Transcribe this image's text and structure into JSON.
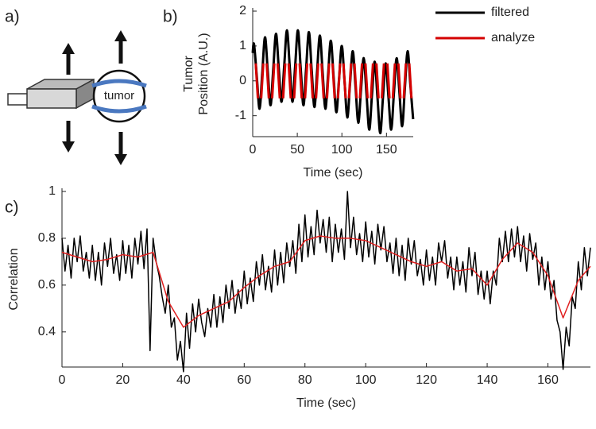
{
  "diagram": {
    "panel_label": "a)",
    "label": "tumor"
  },
  "chart_data": [
    {
      "type": "line",
      "panel_label": "b)",
      "xlabel": "Time (sec)",
      "ylabel": [
        "Tumor",
        "Position (A.U.)"
      ],
      "xlim": [
        0,
        180
      ],
      "ylim": [
        -1.6,
        2
      ],
      "xticks": [
        0,
        50,
        100,
        150
      ],
      "yticks": [
        -1,
        0,
        1,
        2
      ],
      "smooth": true,
      "legend": "upper right",
      "series": [
        {
          "name": "filtered",
          "color": "#000000",
          "x": [
            0,
            1.5,
            4.6,
            7.7,
            10.7,
            13.8,
            16.9,
            20.0,
            23.0,
            26.1,
            29.2,
            32.3,
            35.3,
            38.4,
            41.5,
            44.6,
            47.6,
            50.7,
            53.8,
            56.9,
            59.9,
            63.0,
            66.1,
            69.2,
            72.2,
            75.3,
            78.4,
            81.5,
            84.5,
            87.6,
            90.7,
            93.8,
            96.8,
            99.9,
            103.0,
            106.1,
            109.1,
            112.2,
            115.3,
            118.4,
            121.4,
            124.5,
            127.6,
            130.7,
            133.7,
            136.8,
            139.9,
            143.0,
            146.0,
            149.1,
            152.2,
            155.3,
            158.3,
            161.4,
            164.5,
            167.6,
            170.6,
            173.7,
            176.8,
            179.9
          ],
          "values": [
            0.8,
            1.05,
            0.12,
            -0.8,
            0.22,
            1.25,
            0.27,
            -0.7,
            0.32,
            1.35,
            0.37,
            -0.6,
            0.42,
            1.45,
            0.42,
            -0.6,
            0.42,
            1.45,
            0.37,
            -0.7,
            0.35,
            1.4,
            0.32,
            -0.75,
            0.27,
            1.3,
            0.25,
            -0.8,
            0.17,
            1.15,
            0.12,
            -0.9,
            0.05,
            1.0,
            -0.02,
            -1.05,
            -0.1,
            0.85,
            -0.17,
            -1.2,
            -0.27,
            0.65,
            -0.37,
            -1.4,
            -0.42,
            0.55,
            -0.47,
            -1.5,
            -0.5,
            0.5,
            -0.45,
            -1.4,
            -0.37,
            0.65,
            -0.32,
            -1.3,
            -0.22,
            0.85,
            -0.12,
            -1.1
          ]
        },
        {
          "name": "analyze",
          "color": "#d40000",
          "x": [
            3.4,
            5.8,
            7.7,
            9.5,
            11.9,
            13.8,
            15.7,
            18.1,
            20.0,
            21.8,
            24.2,
            26.1,
            28.0,
            30.4,
            32.3,
            34.1,
            36.5,
            38.4,
            40.3,
            42.7,
            44.6,
            46.4,
            48.8,
            50.7,
            52.6,
            55.0,
            56.9,
            58.7,
            61.1,
            63.0,
            64.9,
            67.3,
            69.2,
            71.0,
            73.4,
            75.3,
            77.2,
            79.6,
            81.5,
            83.3,
            85.7,
            87.6,
            89.5,
            91.9,
            93.8,
            95.6,
            98.0,
            99.9,
            101.8,
            104.2,
            106.1,
            107.9,
            110.3,
            112.2,
            114.1,
            116.5,
            118.4,
            120.2,
            122.6,
            124.5,
            126.4,
            128.8,
            130.7,
            132.5,
            134.9,
            136.8,
            138.7,
            141.1,
            143.0,
            144.8,
            147.2,
            149.1,
            151.0,
            153.4,
            155.3,
            157.1,
            159.5,
            161.4,
            163.3,
            165.7,
            167.6,
            169.4,
            171.8,
            173.7,
            175.6,
            178.0
          ],
          "values": [
            0.5,
            -0.5,
            null,
            -0.5,
            0.5,
            null,
            0.5,
            -0.5,
            null,
            -0.5,
            0.5,
            null,
            0.5,
            -0.5,
            null,
            -0.5,
            0.5,
            null,
            0.5,
            -0.5,
            null,
            -0.5,
            0.5,
            null,
            0.5,
            -0.5,
            null,
            -0.5,
            0.5,
            null,
            0.5,
            -0.5,
            null,
            -0.5,
            0.5,
            null,
            0.5,
            -0.5,
            null,
            -0.5,
            0.5,
            null,
            0.5,
            -0.5,
            null,
            -0.5,
            0.5,
            null,
            0.5,
            -0.5,
            null,
            -0.5,
            0.5,
            null,
            0.5,
            -0.5,
            null,
            -0.5,
            0.5,
            null,
            0.5,
            -0.5,
            null,
            -0.5,
            0.5,
            null,
            0.5,
            -0.5,
            null,
            -0.5,
            0.5,
            null,
            0.5,
            -0.5,
            null,
            -0.5,
            0.5,
            null,
            0.5,
            -0.5,
            null,
            -0.5,
            0.5,
            null,
            0.5,
            -0.5
          ]
        }
      ]
    },
    {
      "type": "line",
      "panel_label": "c)",
      "xlabel": "Time (sec)",
      "ylabel": [
        "Correlation"
      ],
      "xlim": [
        0,
        174
      ],
      "ylim": [
        0.25,
        1
      ],
      "xticks": [
        0,
        20,
        40,
        60,
        80,
        100,
        120,
        140,
        160
      ],
      "yticks": [
        0.4,
        0.6,
        0.8,
        1
      ],
      "smooth": false,
      "series": [
        {
          "color": "#000000",
          "x": [
            0,
            1,
            2,
            3,
            4,
            5,
            6,
            7,
            8,
            9,
            10,
            11,
            12,
            13,
            14,
            15,
            16,
            17,
            18,
            19,
            20,
            21,
            22,
            23,
            24,
            25,
            26,
            27,
            28,
            29,
            30,
            31,
            32,
            33,
            34,
            35,
            36,
            37,
            38,
            39,
            40,
            41,
            42,
            43,
            44,
            45,
            46,
            47,
            48,
            49,
            50,
            51,
            52,
            53,
            54,
            55,
            56,
            57,
            58,
            59,
            60,
            61,
            62,
            63,
            64,
            65,
            66,
            67,
            68,
            69,
            70,
            71,
            72,
            73,
            74,
            75,
            76,
            77,
            78,
            79,
            80,
            81,
            82,
            83,
            84,
            85,
            86,
            87,
            88,
            89,
            90,
            91,
            92,
            93,
            94,
            95,
            96,
            97,
            98,
            99,
            100,
            101,
            102,
            103,
            104,
            105,
            106,
            107,
            108,
            109,
            110,
            111,
            112,
            113,
            114,
            115,
            116,
            117,
            118,
            119,
            120,
            121,
            122,
            123,
            124,
            125,
            126,
            127,
            128,
            129,
            130,
            131,
            132,
            133,
            134,
            135,
            136,
            137,
            138,
            139,
            140,
            141,
            142,
            143,
            144,
            145,
            146,
            147,
            148,
            149,
            150,
            151,
            152,
            153,
            154,
            155,
            156,
            157,
            158,
            159,
            160,
            161,
            162,
            163,
            164,
            165,
            166,
            167,
            168,
            169,
            170,
            171,
            172,
            173,
            174
          ],
          "values": [
            0.8,
            0.66,
            0.77,
            0.63,
            0.8,
            0.7,
            0.81,
            0.66,
            0.74,
            0.63,
            0.77,
            0.62,
            0.74,
            0.6,
            0.78,
            0.68,
            0.8,
            0.65,
            0.73,
            0.62,
            0.79,
            0.65,
            0.77,
            0.63,
            0.8,
            0.69,
            0.83,
            0.67,
            0.84,
            0.32,
            0.8,
            0.7,
            0.64,
            0.55,
            0.48,
            0.6,
            0.42,
            0.46,
            0.28,
            0.36,
            0.23,
            0.48,
            0.33,
            0.52,
            0.4,
            0.54,
            0.44,
            0.38,
            0.5,
            0.42,
            0.56,
            0.42,
            0.55,
            0.44,
            0.6,
            0.5,
            0.62,
            0.48,
            0.58,
            0.5,
            0.66,
            0.52,
            0.63,
            0.53,
            0.7,
            0.6,
            0.73,
            0.58,
            0.68,
            0.57,
            0.75,
            0.6,
            0.74,
            0.61,
            0.78,
            0.68,
            0.79,
            0.65,
            0.86,
            0.7,
            0.9,
            0.72,
            0.85,
            0.73,
            0.92,
            0.78,
            0.88,
            0.74,
            0.89,
            0.7,
            0.86,
            0.74,
            0.84,
            0.71,
            1.0,
            0.76,
            0.89,
            0.73,
            0.82,
            0.7,
            0.87,
            0.72,
            0.83,
            0.69,
            0.86,
            0.75,
            0.85,
            0.7,
            0.78,
            0.65,
            0.8,
            0.64,
            0.77,
            0.62,
            0.8,
            0.69,
            0.79,
            0.64,
            0.71,
            0.6,
            0.75,
            0.62,
            0.72,
            0.6,
            0.78,
            0.7,
            0.79,
            0.63,
            0.72,
            0.58,
            0.72,
            0.6,
            0.7,
            0.57,
            0.76,
            0.64,
            0.74,
            0.56,
            0.66,
            0.54,
            0.66,
            0.52,
            0.66,
            0.6,
            0.8,
            0.7,
            0.83,
            0.7,
            0.84,
            0.72,
            0.85,
            0.7,
            0.81,
            0.66,
            0.82,
            0.71,
            0.78,
            0.6,
            0.72,
            0.58,
            0.7,
            0.54,
            0.62,
            0.45,
            0.4,
            0.24,
            0.42,
            0.34,
            0.55,
            0.5,
            0.7,
            0.58,
            0.76,
            0.64,
            0.76
          ]
        },
        {
          "color": "#e02020",
          "x": [
            0,
            5,
            10,
            15,
            20,
            25,
            30,
            35,
            40,
            45,
            50,
            55,
            60,
            65,
            70,
            75,
            80,
            85,
            90,
            95,
            100,
            105,
            110,
            115,
            120,
            125,
            130,
            135,
            140,
            145,
            150,
            155,
            160,
            165,
            170,
            174
          ],
          "values": [
            0.74,
            0.72,
            0.7,
            0.71,
            0.73,
            0.72,
            0.74,
            0.53,
            0.42,
            0.47,
            0.5,
            0.53,
            0.59,
            0.64,
            0.68,
            0.7,
            0.79,
            0.81,
            0.8,
            0.8,
            0.79,
            0.76,
            0.73,
            0.7,
            0.68,
            0.7,
            0.66,
            0.67,
            0.6,
            0.71,
            0.78,
            0.74,
            0.64,
            0.46,
            0.62,
            0.68
          ]
        }
      ]
    }
  ]
}
